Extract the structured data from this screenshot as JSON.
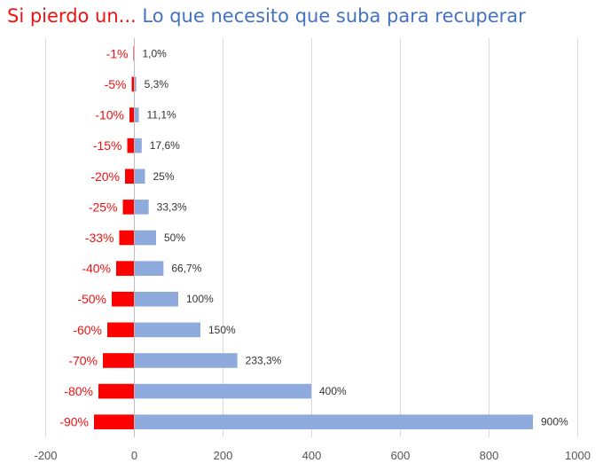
{
  "title": {
    "part1": "Si pierdo un...",
    "part2": "Lo que necesito que suba para recuperar"
  },
  "chart_data": {
    "type": "bar",
    "orientation": "horizontal",
    "categories": [
      "-1%",
      "-5%",
      "-10%",
      "-15%",
      "-20%",
      "-25%",
      "-33%",
      "-40%",
      "-50%",
      "-60%",
      "-70%",
      "-80%",
      "-90%"
    ],
    "series": [
      {
        "color": "#ff0000",
        "values": [
          -1,
          -5,
          -10,
          -15,
          -20,
          -25,
          -33,
          -40,
          -50,
          -60,
          -70,
          -80,
          -90
        ]
      },
      {
        "color": "#8faadc",
        "values": [
          1.0,
          5.3,
          11.1,
          17.6,
          25,
          33.3,
          50,
          66.7,
          100,
          150,
          233.3,
          400,
          900
        ],
        "labels": [
          "1,0%",
          "5,3%",
          "11,1%",
          "17,6%",
          "25%",
          "33,3%",
          "50%",
          "66,7%",
          "100%",
          "150%",
          "233,3%",
          "400%",
          "900%"
        ]
      }
    ],
    "category_label_color": "#ee1111",
    "xlim": [
      -200,
      1000
    ],
    "xticks": [
      -200,
      0,
      200,
      400,
      600,
      800,
      1000
    ],
    "grid": true,
    "legend": "none"
  }
}
